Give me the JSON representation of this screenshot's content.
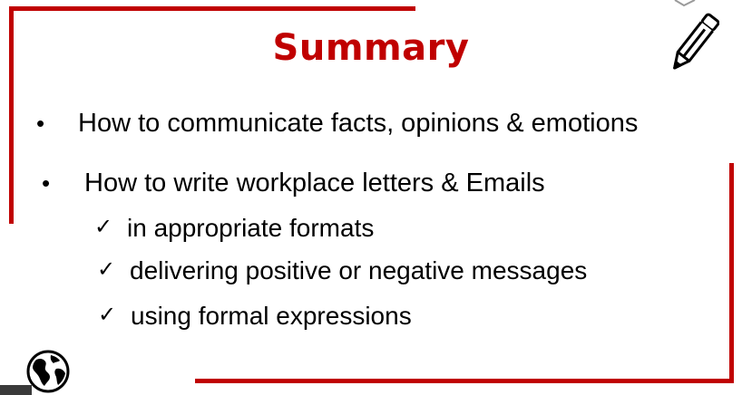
{
  "slide": {
    "title": "Summary",
    "bullets": [
      {
        "marker": "•",
        "text": "How to communicate facts, opinions & emotions"
      },
      {
        "marker": "•",
        "text": "How to write workplace letters & Emails"
      }
    ],
    "sub_items": [
      {
        "marker": "✓",
        "text": "in appropriate formats"
      },
      {
        "marker": "✓",
        "text": "delivering positive or negative messages"
      },
      {
        "marker": "✓",
        "text": "using formal expressions"
      }
    ]
  },
  "colors": {
    "accent": "#c00000",
    "text": "#000000",
    "tab": "#3a3a3a"
  },
  "icons": [
    "pencil-icon",
    "globe-icon"
  ]
}
